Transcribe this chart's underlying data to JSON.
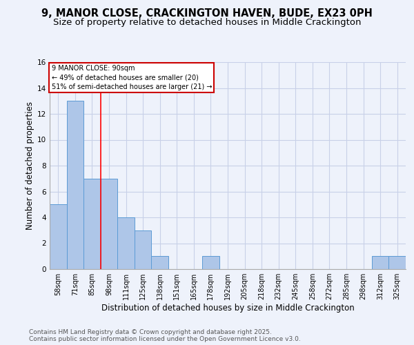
{
  "title": "9, MANOR CLOSE, CRACKINGTON HAVEN, BUDE, EX23 0PH",
  "subtitle": "Size of property relative to detached houses in Middle Crackington",
  "xlabel": "Distribution of detached houses by size in Middle Crackington",
  "ylabel": "Number of detached properties",
  "categories": [
    "58sqm",
    "71sqm",
    "85sqm",
    "98sqm",
    "111sqm",
    "125sqm",
    "138sqm",
    "151sqm",
    "165sqm",
    "178sqm",
    "192sqm",
    "205sqm",
    "218sqm",
    "232sqm",
    "245sqm",
    "258sqm",
    "272sqm",
    "285sqm",
    "298sqm",
    "312sqm",
    "325sqm"
  ],
  "values": [
    5,
    13,
    7,
    7,
    4,
    3,
    1,
    0,
    0,
    1,
    0,
    0,
    0,
    0,
    0,
    0,
    0,
    0,
    0,
    1,
    1
  ],
  "bar_color": "#aec6e8",
  "bar_edge_color": "#5b9bd5",
  "red_line_x": 2.5,
  "annotation_text": "9 MANOR CLOSE: 90sqm\n← 49% of detached houses are smaller (20)\n51% of semi-detached houses are larger (21) →",
  "annotation_box_color": "#ffffff",
  "annotation_box_edge": "#cc0000",
  "ylim": [
    0,
    16
  ],
  "yticks": [
    0,
    2,
    4,
    6,
    8,
    10,
    12,
    14,
    16
  ],
  "footer_line1": "Contains HM Land Registry data © Crown copyright and database right 2025.",
  "footer_line2": "Contains public sector information licensed under the Open Government Licence v3.0.",
  "background_color": "#eef2fb",
  "grid_color": "#c8d0e8",
  "title_fontsize": 10.5,
  "subtitle_fontsize": 9.5,
  "axis_label_fontsize": 8.5,
  "tick_fontsize": 7,
  "footer_fontsize": 6.5
}
